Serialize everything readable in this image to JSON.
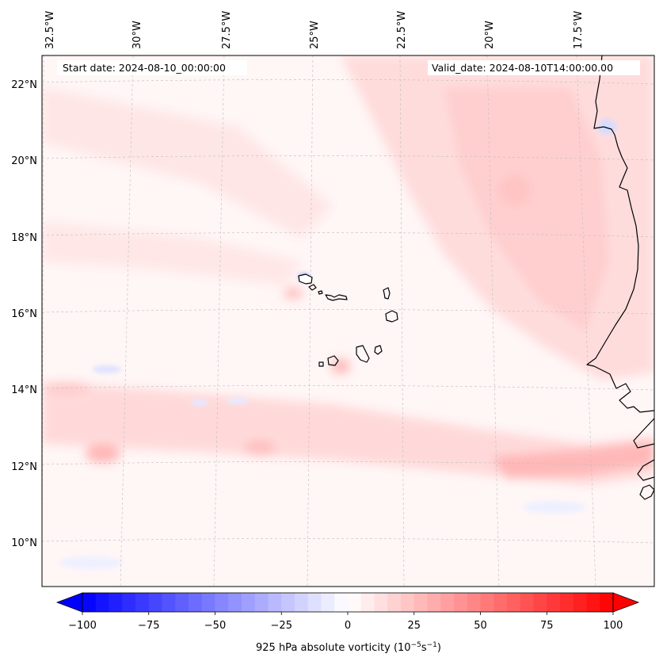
{
  "map": {
    "start_date": "Start date: 2024-08-10_00:00:00",
    "valid_date": "Valid_date: 2024-08-10T14:00:00.00",
    "lon_labels": [
      "32.5°W",
      "30°W",
      "27.5°W",
      "25°W",
      "22.5°W",
      "20°W",
      "17.5°W"
    ],
    "lat_labels": [
      "22°N",
      "20°N",
      "18°N",
      "16°N",
      "14°N",
      "12°N",
      "10°N"
    ],
    "region": "Cape Verde Islands and West African coast",
    "colors": {
      "positive": "#ff0000",
      "negative": "#0000ff",
      "neutral": "#ffffff",
      "coastline": "#000000",
      "gridline": "#bbbbbb"
    }
  },
  "colorbar": {
    "label": "925 hPa absolute vorticity (10",
    "label_exp1": "−5",
    "label_mid": "s",
    "label_exp2": "−1",
    "label_end": ")",
    "min": -100,
    "max": 100,
    "step": 5,
    "ticks": [
      "−100",
      "−75",
      "−50",
      "−25",
      "0",
      "25",
      "50",
      "75",
      "100"
    ]
  }
}
